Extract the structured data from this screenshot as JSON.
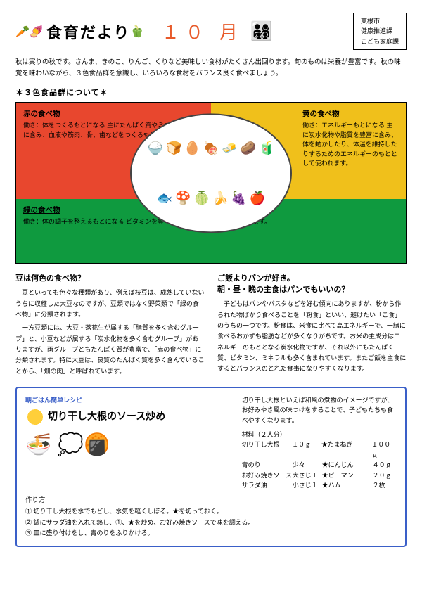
{
  "header": {
    "title": "食育だより",
    "month": "１０ 月",
    "org": [
      "東根市",
      "健康推進課",
      "こども家庭課"
    ]
  },
  "intro": "秋は実りの秋です。さんま、きのこ、りんご、くりなど美味しい食材がたくさん出回ります。旬のものは栄養が豊富です。秋の味覚を味わいながら、３色食品群を意識し、いろいろな食材をバランス良く食べましょう。",
  "colorGroups": {
    "sectionTitle": "＊３色食品群について＊",
    "red": {
      "title": "赤の食べ物",
      "text": "働き：体をつくるもとになる\n主にたんぱく質やミネラルを豊富に含み、血液や筋肉、骨、歯などをつくるもとです。",
      "color": "#e8472e"
    },
    "yellow": {
      "title": "黄の食べ物",
      "text": "働き：エネルギーもとになる\n主に炭水化物や脂質を豊富に含み、体を動かしたり、体温を維持したりするためのエネルギーのもととして使われます。",
      "color": "#f0c01b"
    },
    "green": {
      "title": "緑の食べ物",
      "text": "働き：体の調子を整えるもとになる\nビタミンを豊富に含み、体の各機能を調節します。",
      "color": "#0f9a3f"
    },
    "foods": [
      "🍚",
      "🍞",
      "🥚",
      "🍖",
      "🧈",
      "🥔",
      "🧃",
      "🐟",
      "🍄",
      "🍈",
      "🍌",
      "🍇",
      "🍎"
    ]
  },
  "articles": {
    "left": {
      "title": "豆は何色の食べ物？",
      "paras": [
        "豆といっても色々な種類があり、例えば枝豆は、成熟していないうちに収穫した大豆なのですが、豆類ではなく野菜類で「緑の食べ物」に分類されます。",
        "一方豆類には、大豆・落花生が属する「脂質を多く含むグループ」と、小豆などが属する「炭水化物を多く含むグループ」がありますが、両グループともたんぱく質が豊富で、「赤の食べ物」に分類されます。特に大豆は、良質のたんぱく質を多く含んでいることから、「畑の肉」と呼ばれています。"
      ]
    },
    "right": {
      "title": "ご飯よりパンが好き。\n朝・昼・晩の主食はパンでもいいの？",
      "paras": [
        "子どもはパンやパスタなどを好む傾向にありますが、粉から作られた物ばかり食べることを「粉食」といい、避けたい「こ食」のうちの一つです。粉食は、米食に比べて高エネルギーで、一緒に食べるおかずも脂肪などが多くなりがちです。お米の主成分はエネルギーのもととなる炭水化物ですが、それ以外にもたんぱく質、ビタミン、ミネラルも多く含まれています。またご飯を主食にするとバランスのとれた食事になりやすくなります。"
      ]
    }
  },
  "recipe": {
    "tag": "朝ごはん簡単レシピ",
    "title": "切り干し大根のソース炒め",
    "intro": "切り干し大根といえば和風の煮物のイメージですが、お好みやき風の味つけをすることで、子どもたちも食べやすくなります。",
    "servingsLabel": "材料（２人分）",
    "ingredients": [
      {
        "name": "切り干し大根",
        "amt": "１０ｇ",
        "name2": "★たまねぎ",
        "amt2": "１００ｇ"
      },
      {
        "name": "青のり",
        "amt": "少々",
        "name2": "★にんじん",
        "amt2": "４０ｇ"
      },
      {
        "name": "お好み焼きソース",
        "amt": "大さじ１",
        "name2": "★ピーマン",
        "amt2": "２０ｇ"
      },
      {
        "name": "サラダ油",
        "amt": "小さじ１",
        "name2": "★ハム",
        "amt2": "２枚"
      }
    ],
    "methodTitle": "作り方",
    "steps": [
      "① 切り干し大根を水でもどし、水気を軽くしぼる。★を切っておく。",
      "② 鍋にサラダ油を入れて熱し、①、★を炒め、お好み焼きソースで味を調える。",
      "③ 皿に盛り付けをし、青のりをふりかける。"
    ]
  }
}
